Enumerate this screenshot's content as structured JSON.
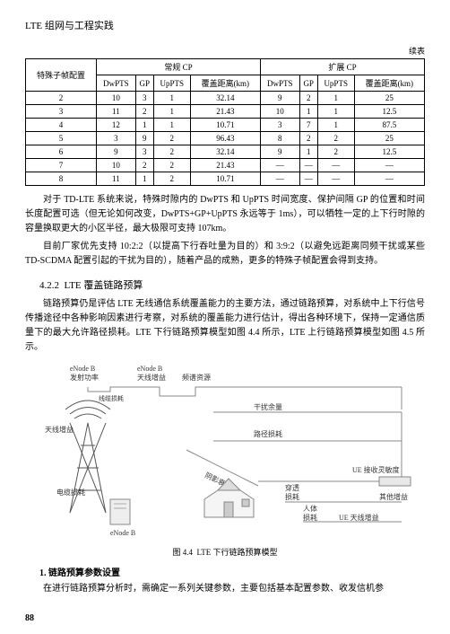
{
  "header": {
    "title": "LTE 组网与工程实践"
  },
  "continue_label": "续表",
  "table": {
    "col_header_main": "特殊子帧配置",
    "group1": {
      "label": "常规 CP",
      "cols": [
        "DwPTS",
        "GP",
        "UpPTS",
        "覆盖距离(km)"
      ]
    },
    "group2": {
      "label": "扩展 CP",
      "cols": [
        "DwPTS",
        "GP",
        "UpPTS",
        "覆盖距离(km)"
      ]
    },
    "rows": [
      {
        "cfg": "2",
        "g1": [
          "10",
          "3",
          "1",
          "32.14"
        ],
        "g2": [
          "9",
          "2",
          "1",
          "25"
        ]
      },
      {
        "cfg": "3",
        "g1": [
          "11",
          "2",
          "1",
          "21.43"
        ],
        "g2": [
          "10",
          "1",
          "1",
          "12.5"
        ]
      },
      {
        "cfg": "4",
        "g1": [
          "12",
          "1",
          "1",
          "10.71"
        ],
        "g2": [
          "3",
          "7",
          "1",
          "87.5"
        ]
      },
      {
        "cfg": "5",
        "g1": [
          "3",
          "9",
          "2",
          "96.43"
        ],
        "g2": [
          "8",
          "2",
          "2",
          "25"
        ]
      },
      {
        "cfg": "6",
        "g1": [
          "9",
          "3",
          "2",
          "32.14"
        ],
        "g2": [
          "9",
          "1",
          "2",
          "12.5"
        ]
      },
      {
        "cfg": "7",
        "g1": [
          "10",
          "2",
          "2",
          "21.43"
        ],
        "g2": [
          "—",
          "—",
          "—",
          "—"
        ]
      },
      {
        "cfg": "8",
        "g1": [
          "11",
          "1",
          "2",
          "10.71"
        ],
        "g2": [
          "—",
          "—",
          "—",
          "—"
        ]
      }
    ],
    "font_size": 9,
    "border_color": "#000000"
  },
  "paragraphs": {
    "p1": "对于 TD-LTE 系统来说，特殊时隙内的 DwPTS 和 UpPTS 时间宽度、保护间隔 GP 的位置和时间长度配置可选（但无论如何改变，DwPTS+GP+UpPTS 永远等于 1ms），可以牺牲一定的上下行时隙的容量换取更大的小区半径，最大极限可支持 107km。",
    "p2": "目前厂家优先支持 10:2:2（以提高下行吞吐量为目的）和 3:9:2（以避免远距离同频干扰或某些 TD-SCDMA 配置引起的干扰为目的），随着产品的成熟，更多的特殊子帧配置会得到支持。",
    "p3": "链路预算仍是评估 LTE 无线通信系统覆盖能力的主要方法，通过链路预算，对系统中上下行信号传播途径中各种影响因素进行考察，对系统的覆盖能力进行估计，得出各种环境下，保持一定通信质量下的最大允许路径损耗。LTE 下行链路预算模型如图 4.4 所示，LTE 上行链路预算模型如图 4.5 所示。",
    "p4": "在进行链路预算分析时，需确定一系列关键参数，主要包括基本配置参数、收发信机参"
  },
  "section": {
    "number": "4.2.2",
    "title": "LTE 覆盖链路预算"
  },
  "subsection": {
    "number": "1.",
    "title": "链路预算参数设置"
  },
  "figure": {
    "caption_prefix": "图 4.4",
    "caption_text": "LTE 下行链路预算模型",
    "labels": {
      "enodeb_top": "eNode B",
      "power": "发射功率",
      "ant_gain_label": "线缆损耗",
      "enodeb_ant": "eNode B",
      "ant_sub": "天线增益",
      "budget": "频谱资源",
      "interf": "干扰余量",
      "path_loss": "路径损耗",
      "ant_gain_tx": "天线增益",
      "cable_loss": "电缆损耗",
      "enodeb_bottom": "eNode B",
      "slow_fading": "阴影衰落",
      "penetration": "穿透",
      "pen_loss": "损耗",
      "body": "人体",
      "body_loss": "损耗",
      "ue_sens": "UE 接收灵敏度",
      "ue_ant": "UE 天线增益",
      "ue_cable": "其他增益"
    },
    "colors": {
      "line": "#888888",
      "text": "#333333",
      "tower": "#666666",
      "building": "#cccccc",
      "ue_box": "#dddddd"
    }
  },
  "page_number": "88"
}
